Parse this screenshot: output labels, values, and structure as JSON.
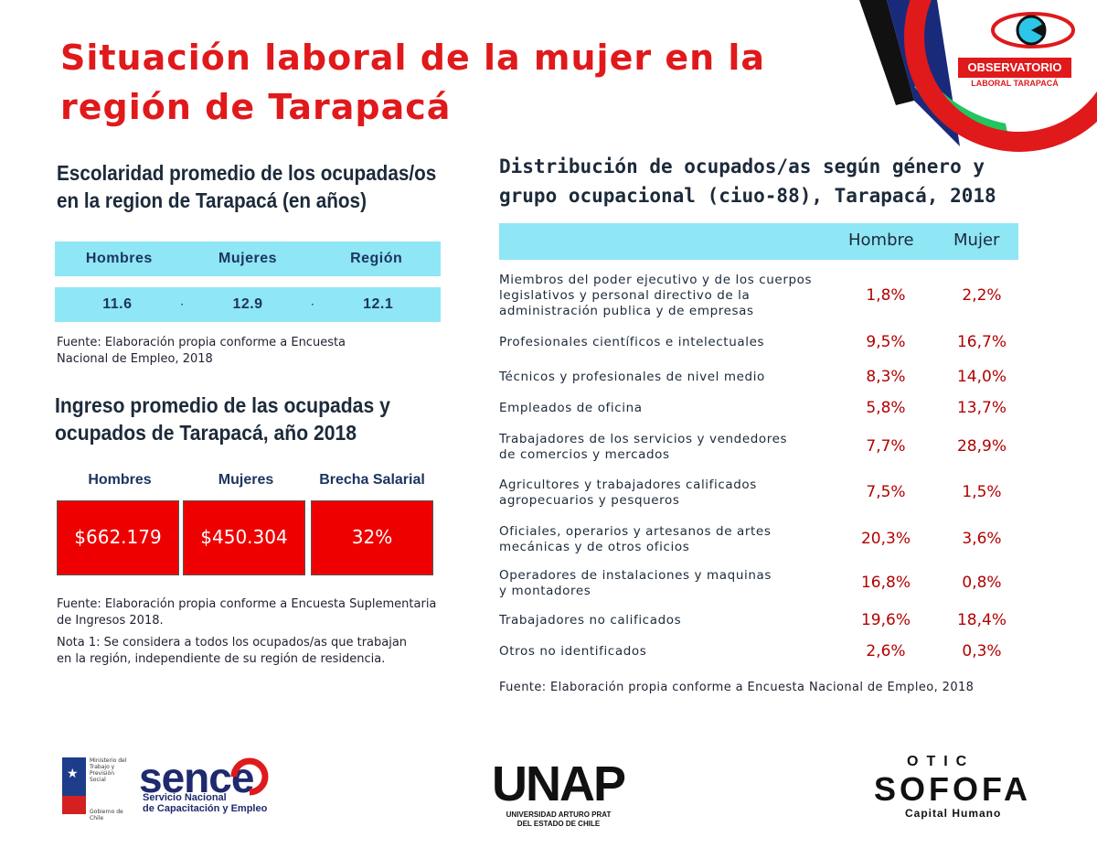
{
  "title_line1": "Situación laboral de la mujer en la",
  "title_line2": "región de Tarapacá",
  "logo": {
    "name": "OBSERVATORIO",
    "sub": "LABORAL TARAPACÁ"
  },
  "escolaridad": {
    "heading_line1": "Escolaridad promedio de los ocupadas/os",
    "heading_line2": "en la region de Tarapacá (en años)",
    "headers": [
      "Hombres",
      "Mujeres",
      "Región"
    ],
    "values": [
      "11.6",
      "12.9",
      "12.1"
    ],
    "source_line1": "Fuente: Elaboración propia conforme a Encuesta",
    "source_line2": "Nacional de Empleo, 2018"
  },
  "ingreso": {
    "heading_line1": "Ingreso promedio de las ocupadas y",
    "heading_line2": "ocupados de Tarapacá, año 2018",
    "headers": [
      "Hombres",
      "Mujeres",
      "Brecha Salarial"
    ],
    "values": [
      "$662.179",
      "$450.304",
      "32%"
    ],
    "source_line1": "Fuente: Elaboración propia conforme a Encuesta Suplementaria",
    "source_line2": "de Ingresos  2018.",
    "note_line1": "Nota 1: Se considera a todos los ocupados/as que trabajan",
    "note_line2": "en la región, independiente de su región de residencia."
  },
  "distribucion": {
    "heading_line1": "Distribución de ocupados/as según género y",
    "heading_line2": "grupo ocupacional (ciuo-88), Tarapacá, 2018",
    "col_hombre": "Hombre",
    "col_mujer": "Mujer",
    "rows": [
      {
        "label": [
          "Miembros del poder ejecutivo y de los cuerpos",
          "legislativos y personal directivo de la",
          "administración publica y de empresas"
        ],
        "hombre": "1,8%",
        "mujer": "2,2%"
      },
      {
        "label": [
          "Profesionales científicos e intelectuales"
        ],
        "hombre": "9,5%",
        "mujer": "16,7%"
      },
      {
        "label": [
          "Técnicos y profesionales de nivel medio"
        ],
        "hombre": "8,3%",
        "mujer": "14,0%"
      },
      {
        "label": [
          "Empleados de oficina"
        ],
        "hombre": "5,8%",
        "mujer": "13,7%"
      },
      {
        "label": [
          "Trabajadores de los servicios y vendedores",
          "de comercios y mercados"
        ],
        "hombre": "7,7%",
        "mujer": "28,9%"
      },
      {
        "label": [
          "Agricultores y trabajadores calificados",
          "agropecuarios y pesqueros"
        ],
        "hombre": "7,5%",
        "mujer": "1,5%"
      },
      {
        "label": [
          "Oficiales, operarios y artesanos de artes",
          "mecánicas y de otros oficios"
        ],
        "hombre": "20,3%",
        "mujer": "3,6%"
      },
      {
        "label": [
          "Operadores de instalaciones y maquinas",
          "y montadores"
        ],
        "hombre": "16,8%",
        "mujer": "0,8%"
      },
      {
        "label": [
          "Trabajadores no calificados"
        ],
        "hombre": "19,6%",
        "mujer": "18,4%"
      },
      {
        "label": [
          "Otros no identificados"
        ],
        "hombre": "2,6%",
        "mujer": "0,3%"
      }
    ],
    "source": "Fuente: Elaboración propia conforme a Encuesta Nacional de Empleo, 2018"
  },
  "footer": {
    "gob_text": "Ministerio del Trabajo y Previsión Social",
    "gob_bottom": "Gobierno de Chile",
    "sence": "sence",
    "sence_sub1": "Servicio Nacional",
    "sence_sub2": "de Capacitación y Empleo",
    "unap": "UNAP",
    "unap_sub1": "UNIVERSIDAD ARTURO PRAT",
    "unap_sub2": "DEL ESTADO DE CHILE",
    "otic_top": "OTIC",
    "otic_word": "SOFOFA",
    "otic_sub": "Capital Humano"
  },
  "colors": {
    "title_red": "#e0191b",
    "header_cyan": "#8fe6f5",
    "box_red": "#ee0000",
    "value_red": "#b30000"
  }
}
